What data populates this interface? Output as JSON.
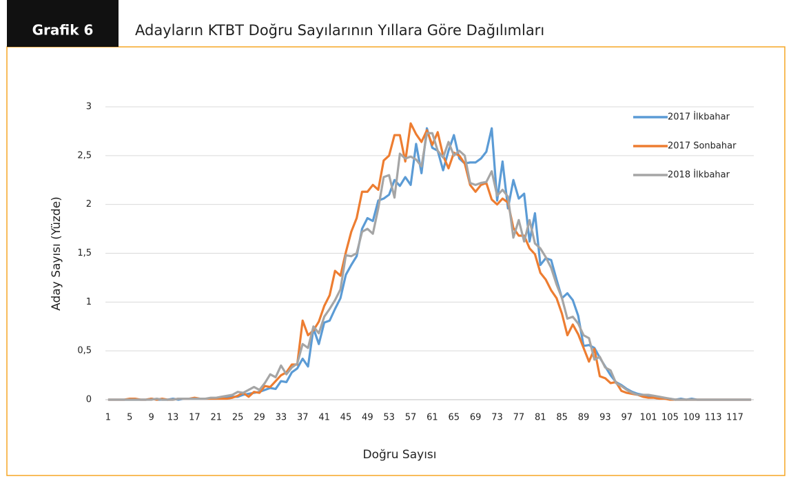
{
  "chart_data": {
    "type": "line",
    "header_label": "Grafik 6",
    "title": "Adayların KTBT Doğru Sayılarının Yıllara Göre Dağılımları",
    "xlabel": "Doğru Sayısı",
    "ylabel": "Aday Sayısı (Yüzde)",
    "legend": "top-right",
    "grid": true,
    "x": [
      1,
      2,
      3,
      4,
      5,
      6,
      7,
      8,
      9,
      10,
      11,
      12,
      13,
      14,
      15,
      16,
      17,
      18,
      19,
      20,
      21,
      22,
      23,
      24,
      25,
      26,
      27,
      28,
      29,
      30,
      31,
      32,
      33,
      34,
      35,
      36,
      37,
      38,
      39,
      40,
      41,
      42,
      43,
      44,
      45,
      46,
      47,
      48,
      49,
      50,
      51,
      52,
      53,
      54,
      55,
      56,
      57,
      58,
      59,
      60,
      61,
      62,
      63,
      64,
      65,
      66,
      67,
      68,
      69,
      70,
      71,
      72,
      73,
      74,
      75,
      76,
      77,
      78,
      79,
      80,
      81,
      82,
      83,
      84,
      85,
      86,
      87,
      88,
      89,
      90,
      91,
      92,
      93,
      94,
      95,
      96,
      97,
      98,
      99,
      100,
      101,
      102,
      103,
      104,
      105,
      106,
      107,
      108,
      109,
      110,
      111,
      112,
      113,
      114,
      115,
      116,
      117,
      118,
      119,
      120
    ],
    "xlim": [
      0.5,
      120.5
    ],
    "xticks": [
      1,
      5,
      9,
      13,
      17,
      21,
      25,
      29,
      33,
      37,
      41,
      45,
      49,
      53,
      57,
      61,
      65,
      69,
      73,
      77,
      81,
      85,
      89,
      93,
      97,
      101,
      105,
      109,
      113,
      117
    ],
    "ylim": [
      0,
      3
    ],
    "yticks": [
      0,
      {
        "value": 0.5,
        "label": "0,5"
      },
      1,
      {
        "value": 1.5,
        "label": "1,5"
      },
      2,
      {
        "value": 2.5,
        "label": "2,5"
      },
      3
    ],
    "series": [
      {
        "name": "2017 İlkbahar",
        "color": "#5b9bd5",
        "values": [
          0,
          0,
          0,
          0,
          0,
          0,
          0,
          0,
          0.01,
          0,
          0,
          0,
          0.01,
          0,
          0.01,
          0.01,
          0.01,
          0.01,
          0.01,
          0.01,
          0.01,
          0.02,
          0.02,
          0.03,
          0.03,
          0.05,
          0.06,
          0.07,
          0.08,
          0.1,
          0.12,
          0.11,
          0.19,
          0.18,
          0.28,
          0.32,
          0.42,
          0.34,
          0.73,
          0.57,
          0.79,
          0.81,
          0.93,
          1.04,
          1.28,
          1.38,
          1.47,
          1.75,
          1.86,
          1.83,
          2.04,
          2.06,
          2.1,
          2.25,
          2.19,
          2.28,
          2.2,
          2.62,
          2.32,
          2.78,
          2.58,
          2.55,
          2.35,
          2.55,
          2.71,
          2.47,
          2.42,
          2.43,
          2.43,
          2.47,
          2.54,
          2.78,
          2.04,
          2.44,
          1.96,
          2.25,
          2.06,
          2.11,
          1.62,
          1.91,
          1.38,
          1.45,
          1.43,
          1.23,
          1.04,
          1.09,
          1.02,
          0.86,
          0.55,
          0.56,
          0.53,
          0.43,
          0.34,
          0.25,
          0.18,
          0.15,
          0.11,
          0.08,
          0.06,
          0.05,
          0.04,
          0.03,
          0.02,
          0.01,
          0.01,
          0,
          0.01,
          0,
          0.01,
          0,
          0,
          0,
          0,
          0,
          0,
          0,
          0,
          0,
          0,
          0
        ]
      },
      {
        "name": "2017 Sonbahar",
        "color": "#ed7d31",
        "values": [
          0,
          0,
          0,
          0,
          0.01,
          0.01,
          0,
          0,
          0.01,
          0,
          0.01,
          0,
          0,
          0.01,
          0.01,
          0.01,
          0.02,
          0.01,
          0.01,
          0.01,
          0.01,
          0.01,
          0.01,
          0.02,
          0.04,
          0.07,
          0.03,
          0.08,
          0.07,
          0.14,
          0.13,
          0.19,
          0.25,
          0.28,
          0.36,
          0.36,
          0.81,
          0.66,
          0.71,
          0.8,
          0.96,
          1.07,
          1.32,
          1.27,
          1.51,
          1.72,
          1.86,
          2.13,
          2.13,
          2.2,
          2.15,
          2.45,
          2.5,
          2.71,
          2.71,
          2.44,
          2.83,
          2.72,
          2.64,
          2.76,
          2.61,
          2.74,
          2.5,
          2.37,
          2.53,
          2.5,
          2.42,
          2.2,
          2.13,
          2.2,
          2.22,
          2.05,
          2.0,
          2.06,
          2.02,
          1.76,
          1.68,
          1.68,
          1.55,
          1.49,
          1.3,
          1.23,
          1.12,
          1.04,
          0.88,
          0.66,
          0.77,
          0.67,
          0.53,
          0.39,
          0.52,
          0.24,
          0.22,
          0.17,
          0.18,
          0.09,
          0.07,
          0.06,
          0.05,
          0.03,
          0.02,
          0.02,
          0.01,
          0.01,
          0,
          0,
          0,
          0,
          0,
          0,
          0,
          0,
          0,
          0,
          0,
          0,
          0,
          0,
          0,
          0
        ]
      },
      {
        "name": "2018 İlkbahar",
        "color": "#a5a5a5",
        "values": [
          0,
          0,
          0,
          0,
          0,
          0,
          0,
          0,
          0,
          0.01,
          0,
          0,
          0,
          0.01,
          0.01,
          0.01,
          0.01,
          0.01,
          0.01,
          0.02,
          0.02,
          0.03,
          0.04,
          0.05,
          0.08,
          0.07,
          0.1,
          0.13,
          0.1,
          0.17,
          0.26,
          0.23,
          0.35,
          0.26,
          0.33,
          0.37,
          0.57,
          0.53,
          0.75,
          0.68,
          0.85,
          0.93,
          1.02,
          1.13,
          1.48,
          1.47,
          1.5,
          1.72,
          1.75,
          1.7,
          1.96,
          2.28,
          2.3,
          2.07,
          2.52,
          2.47,
          2.49,
          2.46,
          2.39,
          2.73,
          2.73,
          2.55,
          2.48,
          2.64,
          2.5,
          2.55,
          2.5,
          2.22,
          2.2,
          2.22,
          2.23,
          2.34,
          2.09,
          2.15,
          2.08,
          1.66,
          1.84,
          1.62,
          1.84,
          1.6,
          1.55,
          1.46,
          1.35,
          1.18,
          1.04,
          0.83,
          0.85,
          0.78,
          0.66,
          0.63,
          0.41,
          0.44,
          0.33,
          0.3,
          0.17,
          0.14,
          0.1,
          0.07,
          0.05,
          0.05,
          0.05,
          0.04,
          0.03,
          0.02,
          0.01,
          0,
          0,
          0,
          0,
          0,
          0,
          0,
          0,
          0,
          0,
          0,
          0,
          0,
          0,
          0
        ]
      }
    ]
  }
}
